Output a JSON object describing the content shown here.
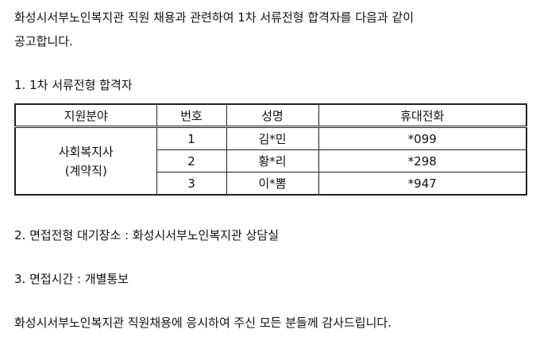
{
  "intro_line1": "화성시서부노인복지관 직원 채용과 관련하여 1차 서류전형 합격자를 다음과 같이",
  "intro_line2": "공고합니다.",
  "section1": "1. 1차 서류전형 합격자",
  "table": {
    "headers": [
      "지원분야",
      "번호",
      "성명",
      "휴대전화"
    ],
    "field_line1": "사회복지사",
    "field_line2": "(계약직)",
    "rows": [
      {
        "no": "1",
        "name": "김*민",
        "phone": "*099"
      },
      {
        "no": "2",
        "name": "황*리",
        "phone": "*298"
      },
      {
        "no": "3",
        "name": "이*뽐",
        "phone": "*947"
      }
    ]
  },
  "section2": "2. 면접전형 대기장소 : 화성시서부노인복지관 상담실",
  "section3": "3. 면접시간 : 개별통보",
  "closing": "화성시서부노인복지관 직원채용에 응시하여 주신 모든 분들께 감사드립니다."
}
